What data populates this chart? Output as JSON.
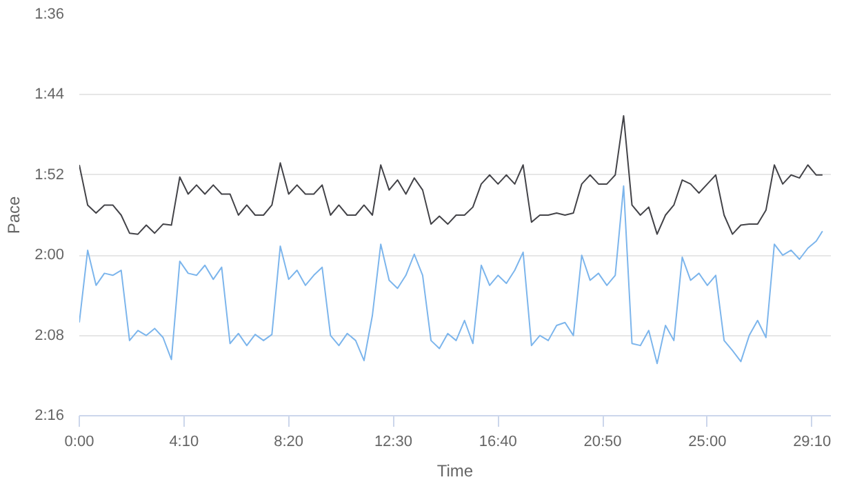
{
  "chart_data": {
    "type": "line",
    "xlabel": "Time",
    "ylabel": "Pace",
    "x": [
      0,
      20,
      40,
      60,
      80,
      100,
      120,
      140,
      160,
      180,
      200,
      220,
      240,
      260,
      280,
      300,
      320,
      340,
      360,
      380,
      400,
      420,
      440,
      460,
      480,
      500,
      520,
      540,
      560,
      580,
      600,
      620,
      640,
      660,
      680,
      700,
      720,
      740,
      760,
      780,
      800,
      820,
      840,
      860,
      880,
      900,
      920,
      940,
      960,
      980,
      1000,
      1020,
      1040,
      1060,
      1080,
      1100,
      1120,
      1140,
      1160,
      1180,
      1200,
      1220,
      1240,
      1260,
      1280,
      1300,
      1320,
      1340,
      1360,
      1380,
      1400,
      1420,
      1440,
      1460,
      1480,
      1500,
      1520,
      1540,
      1560,
      1580,
      1600,
      1620,
      1640,
      1660,
      1680,
      1700,
      1720,
      1740,
      1760,
      1775
    ],
    "series": [
      {
        "color": "#434348",
        "values": [
          111.0,
          115.0,
          115.8,
          115.0,
          115.0,
          116.0,
          117.8,
          117.9,
          117.0,
          117.8,
          116.9,
          117.0,
          112.2,
          113.9,
          113.0,
          113.9,
          113.0,
          113.9,
          113.9,
          116.0,
          115.0,
          116.0,
          116.0,
          115.0,
          110.8,
          113.9,
          113.0,
          113.9,
          113.9,
          113.0,
          116.0,
          115.0,
          116.0,
          116.0,
          115.0,
          116.0,
          111.0,
          113.5,
          112.5,
          113.9,
          112.3,
          113.5,
          116.9,
          116.1,
          116.9,
          116.0,
          116.0,
          115.2,
          112.9,
          112.0,
          112.9,
          112.0,
          112.9,
          111.0,
          116.7,
          116.0,
          116.0,
          115.8,
          116.0,
          115.8,
          112.9,
          112.0,
          112.9,
          112.9,
          112.0,
          106.1,
          115.0,
          116.0,
          115.2,
          117.9,
          116.0,
          115.0,
          112.5,
          112.9,
          113.8,
          112.9,
          112.0,
          116.0,
          117.9,
          117.0,
          116.9,
          116.9,
          115.5,
          111.0,
          112.9,
          112.0,
          112.3,
          111.0,
          112.0,
          112.0
        ]
      },
      {
        "color": "#7cb5ec",
        "values": [
          126.7,
          119.5,
          123.0,
          121.8,
          122.0,
          121.5,
          128.5,
          127.5,
          128.0,
          127.3,
          128.2,
          130.4,
          120.6,
          121.8,
          122.0,
          121.0,
          122.4,
          121.2,
          128.8,
          127.8,
          129.0,
          127.9,
          128.5,
          127.9,
          119.1,
          122.4,
          121.5,
          123.0,
          122.0,
          121.2,
          128.0,
          129.0,
          127.8,
          128.5,
          130.5,
          126.0,
          118.9,
          122.5,
          123.3,
          122.0,
          119.9,
          122.0,
          128.5,
          129.3,
          127.8,
          128.5,
          126.5,
          128.8,
          121.0,
          123.0,
          122.0,
          122.8,
          121.5,
          119.7,
          129.0,
          128.0,
          128.5,
          127.0,
          126.7,
          128.0,
          120.0,
          122.5,
          121.8,
          123.0,
          122.0,
          113.1,
          128.8,
          129.0,
          127.5,
          130.8,
          127.0,
          128.5,
          120.2,
          122.5,
          121.8,
          123.0,
          122.0,
          128.5,
          129.5,
          130.6,
          128.0,
          126.5,
          128.2,
          118.9,
          120.0,
          119.5,
          120.4,
          119.3,
          118.6,
          117.6
        ]
      }
    ],
    "xlim": [
      0,
      1795
    ],
    "xticks": [
      {
        "value": 0,
        "label": "0:00"
      },
      {
        "value": 250,
        "label": "4:10"
      },
      {
        "value": 500,
        "label": "8:20"
      },
      {
        "value": 750,
        "label": "12:30"
      },
      {
        "value": 1000,
        "label": "16:40"
      },
      {
        "value": 1250,
        "label": "20:50"
      },
      {
        "value": 1500,
        "label": "25:00"
      },
      {
        "value": 1750,
        "label": "29:10"
      }
    ],
    "ylim": [
      136,
      96
    ],
    "yticks": [
      {
        "value": 96,
        "label": "1:36"
      },
      {
        "value": 104,
        "label": "1:44"
      },
      {
        "value": 112,
        "label": "1:52"
      },
      {
        "value": 120,
        "label": "2:00"
      },
      {
        "value": 128,
        "label": "2:08"
      },
      {
        "value": 136,
        "label": "2:16"
      }
    ],
    "grid": "y",
    "marker": "none",
    "line_style": "solid"
  }
}
